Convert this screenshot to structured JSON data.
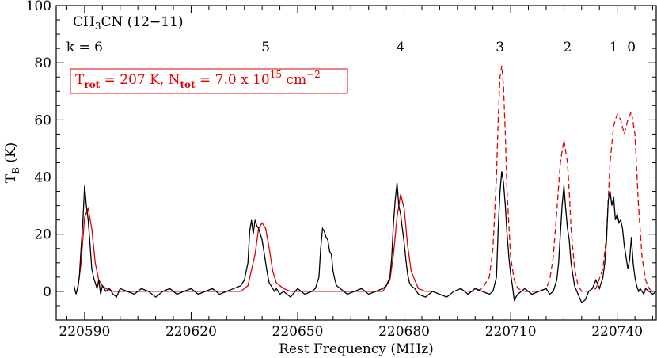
{
  "chart_data": {
    "type": "line",
    "title": "CH3CN (12−11)",
    "title_parts": {
      "base": "CH",
      "sub": "3",
      "rest": "CN (12−11)"
    },
    "xlabel": "Rest Frequency (MHz)",
    "ylabel": "T_B (K)",
    "ylabel_parts": {
      "base": "T",
      "sub": "B",
      "rest": " (K)"
    },
    "xlim": [
      220582,
      220751
    ],
    "ylim": [
      -10,
      100
    ],
    "x_ticks": [
      220590,
      220620,
      220650,
      220680,
      220710,
      220740
    ],
    "y_ticks": [
      0,
      20,
      40,
      60,
      80,
      100
    ],
    "grid": false,
    "k_components": [
      {
        "label": "k = 6",
        "x": 220590
      },
      {
        "label": "5",
        "x": 220641
      },
      {
        "label": "4",
        "x": 220679
      },
      {
        "label": "3",
        "x": 220707
      },
      {
        "label": "2",
        "x": 220726
      },
      {
        "label": "1",
        "x": 220739
      },
      {
        "label": "0",
        "x": 220744
      }
    ],
    "annotation": {
      "text": "T_rot = 207 K, N_tot = 7.0 x 10^15 cm^-2",
      "trot_base": "T",
      "trot_sub": "rot",
      "trot_value": " = 207 K, ",
      "ntot_base": "N",
      "ntot_sub": "tot",
      "ntot_value": " = 7.0 x 10",
      "ntot_exp": "15",
      "unit": " cm",
      "unit_exp": "−2",
      "color": "#e00000"
    },
    "colors": {
      "observed": "#000000",
      "model_fit": "#e00000",
      "model_predicted": "#e00000"
    },
    "series": [
      {
        "style": "solid",
        "color": "#000000",
        "x": [
          220587,
          220587.6,
          220588,
          220588.5,
          220589,
          220589.5,
          220590,
          220590.5,
          220591,
          220591.5,
          220592,
          220592.5,
          220593,
          220593.5,
          220594,
          220594.5,
          220595,
          220596,
          220597,
          220598,
          220599,
          220600,
          220602,
          220604,
          220606,
          220608,
          220610,
          220612,
          220614,
          220616,
          220618,
          220620,
          220622,
          220624,
          220626,
          220628,
          220630,
          220632,
          220634,
          220635,
          220636,
          220636.5,
          220637,
          220637.5,
          220638,
          220638.5,
          220639,
          220639.5,
          220640,
          220640.5,
          220641,
          220641.5,
          220642,
          220642.5,
          220643,
          220643.5,
          220644,
          220645,
          220646,
          220648,
          220650,
          220652,
          220654,
          220655,
          220656,
          220656.5,
          220657,
          220657.5,
          220658,
          220658.5,
          220659,
          220659.5,
          220660,
          220660.5,
          220661,
          220662,
          220663,
          220664,
          220666,
          220668,
          220670,
          220672,
          220674,
          220675,
          220676,
          220676.5,
          220677,
          220677.5,
          220678,
          220678.5,
          220679,
          220679.5,
          220680,
          220680.5,
          220681,
          220681.5,
          220682,
          220683,
          220684,
          220686,
          220688,
          220690,
          220692,
          220694,
          220696,
          220698,
          220700,
          220702,
          220704,
          220705,
          220706,
          220706.5,
          220707,
          220707.5,
          220708,
          220708.5,
          220709,
          220709.5,
          220710,
          220710.5,
          220711,
          220712,
          220713,
          220714,
          220716,
          220718,
          220720,
          220721,
          220722,
          220723,
          220723.5,
          220724,
          220724.5,
          220725,
          220725.5,
          220726,
          220726.5,
          220727,
          220727.5,
          220728,
          220729,
          220730,
          220731,
          220732,
          220733,
          220734,
          220735,
          220736,
          220736.5,
          220737,
          220737.5,
          220738,
          220738.5,
          220739,
          220739.5,
          220740,
          220740.5,
          220741,
          220741.5,
          220742,
          220742.5,
          220743,
          220743.5,
          220744,
          220744.5,
          220745,
          220745.5,
          220746,
          220746.5,
          220747,
          220747.5,
          220748,
          220749,
          220750,
          220751
        ],
        "values": [
          2,
          -1,
          1,
          5,
          15,
          24,
          37,
          30,
          25,
          17,
          8,
          5,
          3,
          1,
          4,
          -1,
          2,
          0,
          1,
          -1,
          -2,
          1,
          0,
          -1,
          1,
          0,
          -2,
          0,
          1,
          -1,
          0,
          1,
          -1,
          0,
          1,
          -1,
          0,
          1,
          2,
          4,
          10,
          21,
          25,
          20,
          25,
          23,
          22,
          20,
          18,
          14,
          10,
          6,
          3,
          2,
          1,
          0,
          1,
          -1,
          0,
          -2,
          1,
          -1,
          0,
          1,
          5,
          15,
          22,
          21,
          19,
          18,
          14,
          13,
          7,
          4,
          2,
          1,
          0,
          -1,
          0,
          1,
          -1,
          0,
          1,
          2,
          5,
          12,
          24,
          32,
          38,
          30,
          27,
          22,
          17,
          11,
          6,
          3,
          2,
          1,
          -1,
          -2,
          0,
          -1,
          -2,
          0,
          1,
          -1,
          1,
          0,
          -1,
          0,
          5,
          22,
          35,
          42,
          38,
          30,
          20,
          12,
          6,
          2,
          -3,
          -1,
          0,
          1,
          -1,
          0,
          1,
          -1,
          0,
          4,
          10,
          20,
          30,
          37,
          29,
          22,
          18,
          10,
          6,
          2,
          -1,
          -4,
          -3,
          0,
          1,
          4,
          1,
          5,
          10,
          18,
          32,
          35,
          30,
          33,
          25,
          27,
          24,
          25,
          22,
          16,
          12,
          8,
          11,
          19,
          10,
          5,
          2,
          0,
          1,
          0,
          -1,
          1,
          0,
          -1,
          0
        ]
      },
      {
        "style": "solid",
        "color": "#e00000",
        "x": [
          220588,
          220589,
          220590,
          220591,
          220592,
          220593,
          220594,
          220595,
          220596,
          220598,
          220600,
          220634,
          220636,
          220638,
          220639,
          220640,
          220641,
          220642,
          220643,
          220644,
          220646,
          220648,
          220672,
          220674,
          220676,
          220677,
          220678,
          220679,
          220680,
          220681,
          220682,
          220684,
          220686,
          220688
        ],
        "values": [
          0,
          10,
          26,
          29,
          22,
          10,
          4,
          2,
          1,
          0,
          0,
          0,
          2,
          13,
          22,
          24,
          22,
          15,
          7,
          3,
          1,
          0,
          0,
          0,
          4,
          13,
          26,
          34,
          29,
          16,
          7,
          1,
          0,
          0
        ]
      },
      {
        "style": "dashed",
        "color": "#e00000",
        "x": [
          220698,
          220700,
          220702,
          220704,
          220705,
          220706,
          220706.5,
          220707,
          220707.5,
          220708,
          220708.5,
          220709,
          220710,
          220711,
          220712,
          220714,
          220716,
          220718,
          220720,
          220721,
          220722,
          220723,
          220724,
          220725,
          220726,
          220726.5,
          220727,
          220728,
          220729,
          220730,
          220732,
          220734,
          220736,
          220737,
          220738,
          220739,
          220740,
          220741,
          220742,
          220743,
          220744,
          220745,
          220746,
          220747,
          220748,
          220749,
          220750
        ],
        "values": [
          0,
          0,
          1,
          5,
          15,
          40,
          60,
          75,
          79,
          72,
          55,
          35,
          12,
          4,
          1,
          0,
          0,
          0,
          1,
          4,
          12,
          28,
          45,
          53,
          45,
          35,
          22,
          8,
          2,
          0,
          0,
          1,
          8,
          20,
          45,
          58,
          62,
          60,
          55,
          60,
          63,
          55,
          30,
          12,
          4,
          1,
          0
        ]
      }
    ]
  }
}
